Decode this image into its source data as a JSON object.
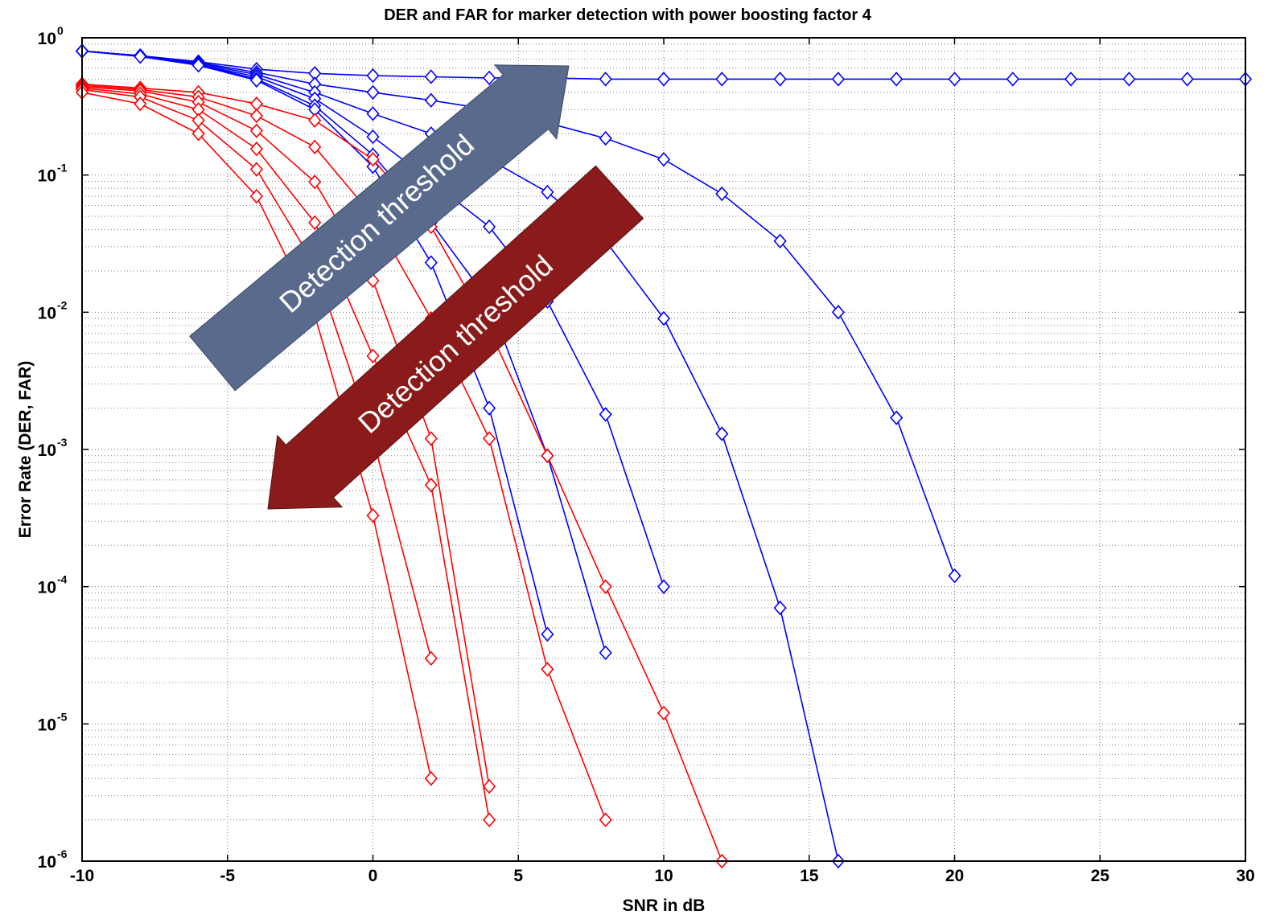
{
  "chart_data": {
    "type": "line",
    "title": "DER and FAR for marker detection with power boosting factor 4",
    "xlabel": "SNR in dB",
    "ylabel": "Error Rate (DER, FAR)",
    "xlim": [
      -10,
      30
    ],
    "ylim": [
      1e-06,
      1
    ],
    "yscale": "log",
    "grid": true,
    "x_ticks": [
      "-10",
      "-5",
      "0",
      "5",
      "10",
      "15",
      "20",
      "25",
      "30"
    ],
    "y_ticks": [
      {
        "base": "10",
        "exp": "0",
        "value": 1
      },
      {
        "base": "10",
        "exp": "-1",
        "value": 0.1
      },
      {
        "base": "10",
        "exp": "-2",
        "value": 0.01
      },
      {
        "base": "10",
        "exp": "-3",
        "value": 0.001
      },
      {
        "base": "10",
        "exp": "-4",
        "value": 0.0001
      },
      {
        "base": "10",
        "exp": "-5",
        "value": 1e-05
      },
      {
        "base": "10",
        "exp": "-6",
        "value": 1e-06
      }
    ],
    "colors": {
      "der": "#0000ff",
      "far": "#ff0000",
      "arrow_up": "#5a6a8c",
      "arrow_down": "#8b1a1a"
    },
    "series": [
      {
        "group": "der",
        "x": [
          -10,
          -8,
          -6,
          -4,
          -2,
          0,
          2,
          4,
          6,
          8,
          10,
          12,
          14,
          16,
          18,
          20,
          22,
          24,
          26,
          28,
          30
        ],
        "y": [
          0.8,
          0.74,
          0.67,
          0.59,
          0.55,
          0.53,
          0.52,
          0.51,
          0.51,
          0.5,
          0.5,
          0.5,
          0.5,
          0.5,
          0.5,
          0.5,
          0.5,
          0.5,
          0.5,
          0.5,
          0.5
        ]
      },
      {
        "group": "der",
        "x": [
          -10,
          -8,
          -6,
          -4,
          -2,
          0,
          2,
          4,
          6,
          8,
          10,
          12,
          14,
          16,
          18,
          20
        ],
        "y": [
          0.8,
          0.74,
          0.66,
          0.56,
          0.46,
          0.4,
          0.35,
          0.3,
          0.24,
          0.185,
          0.13,
          0.073,
          0.033,
          0.01,
          0.0017,
          0.00012
        ]
      },
      {
        "group": "der",
        "x": [
          -10,
          -8,
          -6,
          -4,
          -2,
          0,
          2,
          4,
          6,
          8,
          10,
          12,
          14,
          16
        ],
        "y": [
          0.8,
          0.74,
          0.65,
          0.54,
          0.4,
          0.28,
          0.2,
          0.13,
          0.075,
          0.033,
          0.009,
          0.0013,
          7e-05,
          1e-06
        ]
      },
      {
        "group": "der",
        "x": [
          -10,
          -8,
          -6,
          -4,
          -2,
          0,
          2,
          4,
          6,
          8,
          10
        ],
        "y": [
          0.8,
          0.74,
          0.64,
          0.52,
          0.36,
          0.19,
          0.09,
          0.042,
          0.012,
          0.0018,
          0.0001
        ]
      },
      {
        "group": "der",
        "x": [
          -10,
          -8,
          -6,
          -4,
          -2,
          0,
          2,
          4,
          6,
          8
        ],
        "y": [
          0.8,
          0.74,
          0.64,
          0.5,
          0.32,
          0.14,
          0.045,
          0.012,
          0.0009,
          3.3e-05
        ]
      },
      {
        "group": "der",
        "x": [
          -10,
          -8,
          -6,
          -4,
          -2,
          0,
          2,
          4,
          6
        ],
        "y": [
          0.8,
          0.73,
          0.63,
          0.49,
          0.3,
          0.115,
          0.023,
          0.002,
          4.5e-05
        ]
      },
      {
        "group": "far",
        "x": [
          -10,
          -8,
          -6,
          -4,
          -2,
          0,
          2,
          4,
          6,
          8,
          10,
          12
        ],
        "y": [
          0.46,
          0.43,
          0.4,
          0.33,
          0.25,
          0.13,
          0.042,
          0.0075,
          0.0009,
          0.0001,
          1.2e-05,
          1e-06
        ]
      },
      {
        "group": "far",
        "x": [
          -10,
          -8,
          -6,
          -4,
          -2,
          0,
          2,
          4,
          6,
          8
        ],
        "y": [
          0.45,
          0.42,
          0.37,
          0.27,
          0.16,
          0.05,
          0.009,
          0.0012,
          2.5e-05,
          2e-06
        ]
      },
      {
        "group": "far",
        "x": [
          -10,
          -8,
          -6,
          -4,
          -2,
          0,
          2,
          4
        ],
        "y": [
          0.44,
          0.41,
          0.34,
          0.21,
          0.089,
          0.017,
          0.0012,
          3.5e-06
        ]
      },
      {
        "group": "far",
        "x": [
          -10,
          -8,
          -6,
          -4,
          -2,
          0,
          2,
          4
        ],
        "y": [
          0.43,
          0.39,
          0.3,
          0.155,
          0.045,
          0.0048,
          0.00055,
          2e-06
        ]
      },
      {
        "group": "far",
        "x": [
          -10,
          -8,
          -6,
          -4,
          -2,
          0,
          2
        ],
        "y": [
          0.42,
          0.37,
          0.25,
          0.11,
          0.022,
          0.0012,
          3e-05
        ]
      },
      {
        "group": "far",
        "x": [
          -10,
          -8,
          -6,
          -4,
          -2,
          0,
          2
        ],
        "y": [
          0.4,
          0.33,
          0.2,
          0.07,
          0.0095,
          0.00033,
          4e-06
        ]
      }
    ],
    "annotations": [
      {
        "text": "Detection threshold",
        "color": "#5a6a8c",
        "direction": "up-right"
      },
      {
        "text": "Detection threshold",
        "color": "#8b1a1a",
        "direction": "down-left"
      }
    ]
  }
}
